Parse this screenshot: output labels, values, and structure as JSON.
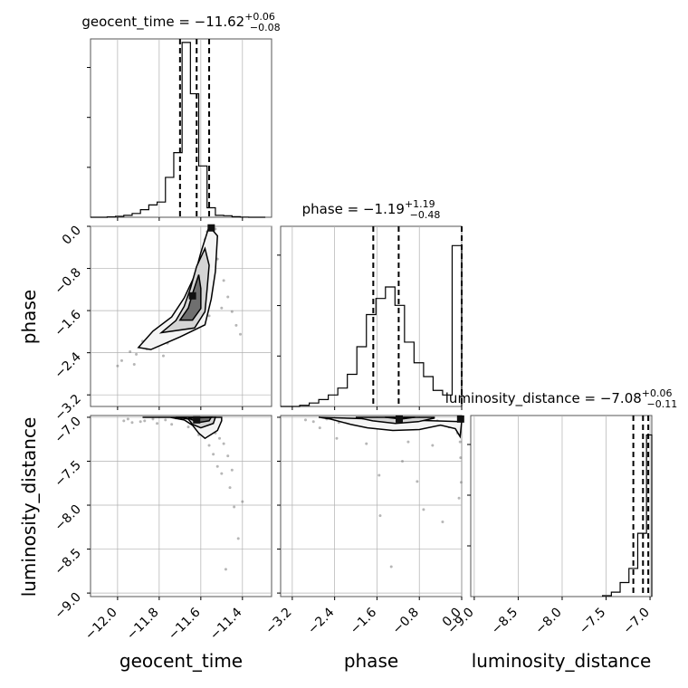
{
  "chart_data": {
    "type": "corner",
    "parameters": [
      {
        "name": "geocent_time",
        "xlabel": "geocent_time",
        "title_prefix": "geocent_time = ",
        "median": "−11.62",
        "upper": "+0.06",
        "lower": "−0.08",
        "range": [
          -12.13,
          -11.26
        ],
        "ticks": [
          -12.0,
          -11.8,
          -11.6,
          -11.4
        ],
        "tick_labels": [
          "−12.0",
          "−11.8",
          "−11.6",
          "−11.4"
        ],
        "quantiles": [
          -11.7,
          -11.62,
          -11.56
        ],
        "hist_bins": [
          -12.13,
          -12.09,
          -12.05,
          -12.01,
          -11.97,
          -11.93,
          -11.89,
          -11.85,
          -11.81,
          -11.77,
          -11.73,
          -11.69,
          -11.65,
          -11.61,
          -11.57,
          -11.53,
          -11.49,
          -11.45,
          -11.41,
          -11.37,
          -11.33,
          -11.29
        ],
        "hist_counts": [
          0,
          0,
          0.2,
          0.5,
          1.0,
          2.0,
          4.0,
          6.5,
          8.0,
          21.0,
          34.0,
          92.0,
          65.0,
          27.0,
          5.0,
          1.0,
          0.8,
          0.3,
          0.1,
          0,
          0
        ]
      },
      {
        "name": "phase",
        "xlabel": "phase",
        "ylabel": "phase",
        "title_prefix": "phase = ",
        "median": "−1.19",
        "upper": "+1.19",
        "lower": "−0.48",
        "range": [
          -3.42,
          0.0
        ],
        "ticks": [
          -3.2,
          -2.4,
          -1.6,
          -0.8,
          0.0
        ],
        "tick_labels": [
          "−3.2",
          "−2.4",
          "−1.6",
          "−0.8",
          "0.0"
        ],
        "quantiles": [
          -1.67,
          -1.19,
          0.0
        ],
        "hist_bins": [
          -3.42,
          -3.24,
          -3.06,
          -2.88,
          -2.7,
          -2.52,
          -2.34,
          -2.16,
          -1.98,
          -1.8,
          -1.62,
          -1.44,
          -1.26,
          -1.08,
          -0.9,
          -0.72,
          -0.54,
          -0.36,
          -0.18,
          0.0
        ],
        "hist_counts": [
          0,
          0,
          0.5,
          1.5,
          3.0,
          5.0,
          8.0,
          14.0,
          26.0,
          40.0,
          47.0,
          52.0,
          44.0,
          28.0,
          19.0,
          13.0,
          7.0,
          5.0,
          70.0
        ]
      },
      {
        "name": "luminosity_distance",
        "xlabel": "luminosity_distance",
        "ylabel": "luminosity_distance",
        "title_prefix": "luminosity_distance = ",
        "median": "−7.08",
        "upper": "+0.06",
        "lower": "−0.11",
        "range": [
          -9.04,
          -6.98
        ],
        "ticks": [
          -9.0,
          -8.5,
          -8.0,
          -7.5,
          -7.0
        ],
        "tick_labels": [
          "−9.0",
          "−8.5",
          "−8.0",
          "−7.5",
          "−7.0"
        ],
        "quantiles": [
          -7.19,
          -7.08,
          -7.02
        ],
        "hist_bins": [
          -7.54,
          -7.44,
          -7.34,
          -7.24,
          -7.14,
          -7.04,
          -6.98
        ],
        "hist_counts": [
          0.5,
          2.5,
          8.0,
          16.0,
          36.0,
          92.0
        ]
      }
    ],
    "scatter_panels": [
      {
        "row": 1,
        "col": 0,
        "points": [
          [
            -11.86,
            -2.33
          ],
          [
            -11.91,
            -2.43
          ],
          [
            -11.94,
            -2.38
          ],
          [
            -11.88,
            -2.18
          ],
          [
            -11.83,
            -2.1
          ],
          [
            -11.8,
            -1.97
          ],
          [
            -11.75,
            -1.83
          ],
          [
            -11.72,
            -1.72
          ],
          [
            -11.7,
            -1.58
          ],
          [
            -11.67,
            -1.45
          ],
          [
            -11.66,
            -1.31
          ],
          [
            -11.64,
            -1.12
          ],
          [
            -11.63,
            -0.95
          ],
          [
            -11.61,
            -0.8
          ],
          [
            -11.6,
            -0.62
          ],
          [
            -11.59,
            -0.44
          ],
          [
            -11.58,
            -0.25
          ],
          [
            -11.57,
            -0.1
          ],
          [
            -11.55,
            -0.06
          ],
          [
            -11.53,
            -0.05
          ],
          [
            -11.52,
            -0.62
          ],
          [
            -11.49,
            -1.03
          ],
          [
            -11.47,
            -1.34
          ],
          [
            -11.45,
            -1.62
          ],
          [
            -11.43,
            -1.88
          ],
          [
            -11.41,
            -2.05
          ],
          [
            -11.78,
            -2.46
          ],
          [
            -11.98,
            -2.55
          ],
          [
            -12.0,
            -2.65
          ],
          [
            -11.92,
            -2.62
          ],
          [
            -11.84,
            -2.32
          ],
          [
            -11.76,
            -2.22
          ],
          [
            -11.69,
            -1.92
          ],
          [
            -11.62,
            -1.8
          ],
          [
            -11.56,
            -1.7
          ],
          [
            -11.5,
            -1.55
          ]
        ],
        "contours": [
          [
            [
              -11.9,
              -2.3
            ],
            [
              -11.83,
              -1.99
            ],
            [
              -11.74,
              -1.72
            ],
            [
              -11.68,
              -1.36
            ],
            [
              -11.63,
              -0.94
            ],
            [
              -11.6,
              -0.5
            ],
            [
              -11.56,
              0.0
            ],
            [
              -11.52,
              -0.18
            ],
            [
              -11.53,
              -0.86
            ],
            [
              -11.55,
              -1.38
            ],
            [
              -11.58,
              -1.87
            ],
            [
              -11.7,
              -2.1
            ],
            [
              -11.84,
              -2.34
            ]
          ],
          [
            [
              -11.79,
              -2.02
            ],
            [
              -11.72,
              -1.79
            ],
            [
              -11.68,
              -1.52
            ],
            [
              -11.65,
              -1.18
            ],
            [
              -11.62,
              -0.76
            ],
            [
              -11.58,
              -0.42
            ],
            [
              -11.56,
              -0.74
            ],
            [
              -11.57,
              -1.2
            ],
            [
              -11.58,
              -1.62
            ],
            [
              -11.63,
              -1.93
            ]
          ],
          [
            [
              -11.7,
              -1.78
            ],
            [
              -11.66,
              -1.55
            ],
            [
              -11.64,
              -1.28
            ],
            [
              -11.61,
              -0.92
            ],
            [
              -11.6,
              -1.18
            ],
            [
              -11.6,
              -1.56
            ],
            [
              -11.64,
              -1.78
            ]
          ]
        ],
        "dense_spots": [
          [
            -11.64,
            -1.32
          ],
          [
            -11.55,
            -0.03
          ]
        ]
      },
      {
        "row": 2,
        "col": 0,
        "points": [
          [
            -11.97,
            -7.04
          ],
          [
            -11.93,
            -7.06
          ],
          [
            -11.87,
            -7.04
          ],
          [
            -11.83,
            -7.02
          ],
          [
            -11.77,
            -7.03
          ],
          [
            -11.72,
            -7.01
          ],
          [
            -11.68,
            -7.02
          ],
          [
            -11.63,
            -7.05
          ],
          [
            -11.59,
            -7.09
          ],
          [
            -11.56,
            -7.12
          ],
          [
            -11.53,
            -7.18
          ],
          [
            -11.51,
            -7.24
          ],
          [
            -11.49,
            -7.3
          ],
          [
            -11.47,
            -7.44
          ],
          [
            -11.45,
            -7.6
          ],
          [
            -11.46,
            -7.8
          ],
          [
            -11.44,
            -8.02
          ],
          [
            -11.42,
            -8.38
          ],
          [
            -11.48,
            -8.73
          ],
          [
            -11.52,
            -7.56
          ],
          [
            -11.54,
            -7.42
          ],
          [
            -11.5,
            -7.64
          ],
          [
            -11.4,
            -7.96
          ],
          [
            -11.56,
            -7.32
          ],
          [
            -11.61,
            -7.2
          ],
          [
            -11.66,
            -7.11
          ],
          [
            -11.74,
            -7.08
          ],
          [
            -11.81,
            -7.07
          ],
          [
            -11.89,
            -7.05
          ],
          [
            -11.95,
            -7.02
          ]
        ],
        "contours": [
          [
            [
              -11.88,
              -7.0
            ],
            [
              -11.75,
              -7.0
            ],
            [
              -11.68,
              -7.03
            ],
            [
              -11.64,
              -7.09
            ],
            [
              -11.61,
              -7.18
            ],
            [
              -11.58,
              -7.24
            ],
            [
              -11.52,
              -7.15
            ],
            [
              -11.5,
              -7.04
            ],
            [
              -11.5,
              -7.0
            ]
          ],
          [
            [
              -11.72,
              -7.0
            ],
            [
              -11.66,
              -7.02
            ],
            [
              -11.64,
              -7.08
            ],
            [
              -11.6,
              -7.12
            ],
            [
              -11.54,
              -7.07
            ],
            [
              -11.53,
              -7.0
            ]
          ],
          [
            [
              -11.66,
              -7.01
            ],
            [
              -11.61,
              -7.06
            ],
            [
              -11.56,
              -7.04
            ],
            [
              -11.55,
              -7.0
            ]
          ]
        ],
        "dense_spots": [
          [
            -11.62,
            -7.03
          ]
        ]
      },
      {
        "row": 2,
        "col": 1,
        "points": [
          [
            -2.95,
            -7.03
          ],
          [
            -2.8,
            -7.05
          ],
          [
            -2.55,
            -7.02
          ],
          [
            -2.32,
            -7.06
          ],
          [
            -2.04,
            -7.08
          ],
          [
            -1.86,
            -7.1
          ],
          [
            -1.65,
            -7.05
          ],
          [
            -1.42,
            -7.08
          ],
          [
            -1.21,
            -7.11
          ],
          [
            -0.96,
            -7.09
          ],
          [
            -0.72,
            -7.06
          ],
          [
            -0.46,
            -7.04
          ],
          [
            -0.24,
            -7.11
          ],
          [
            -0.08,
            -7.18
          ],
          [
            -0.03,
            -7.28
          ],
          [
            -0.02,
            -7.46
          ],
          [
            -0.01,
            -7.74
          ],
          [
            -0.05,
            -7.92
          ],
          [
            -0.72,
            -8.05
          ],
          [
            -1.54,
            -8.12
          ],
          [
            -1.33,
            -8.7
          ],
          [
            -0.36,
            -8.19
          ],
          [
            -0.84,
            -7.73
          ],
          [
            -1.56,
            -7.66
          ],
          [
            -1.01,
            -7.28
          ],
          [
            -0.55,
            -7.32
          ],
          [
            -1.8,
            -7.3
          ],
          [
            -2.36,
            -7.24
          ],
          [
            -2.68,
            -7.12
          ],
          [
            -1.12,
            -7.5
          ]
        ],
        "contours": [
          [
            [
              -2.7,
              -7.0
            ],
            [
              -2.48,
              -7.02
            ],
            [
              -2.1,
              -7.08
            ],
            [
              -1.78,
              -7.12
            ],
            [
              -1.3,
              -7.15
            ],
            [
              -0.8,
              -7.14
            ],
            [
              -0.4,
              -7.09
            ],
            [
              -0.12,
              -7.13
            ],
            [
              -0.03,
              -7.22
            ],
            [
              0.0,
              -7.05
            ]
          ],
          [
            [
              -2.0,
              -7.0
            ],
            [
              -1.68,
              -7.04
            ],
            [
              -1.25,
              -7.07
            ],
            [
              -0.82,
              -7.05
            ],
            [
              -0.52,
              -7.01
            ],
            [
              -0.52,
              -7.0
            ]
          ],
          [
            [
              -1.45,
              -7.0
            ],
            [
              -1.14,
              -7.02
            ],
            [
              -0.88,
              -7.0
            ]
          ]
        ],
        "dense_spots": [
          [
            -1.18,
            -7.02
          ],
          [
            -0.02,
            -7.02
          ]
        ]
      }
    ],
    "grid": true,
    "legend": "none"
  }
}
